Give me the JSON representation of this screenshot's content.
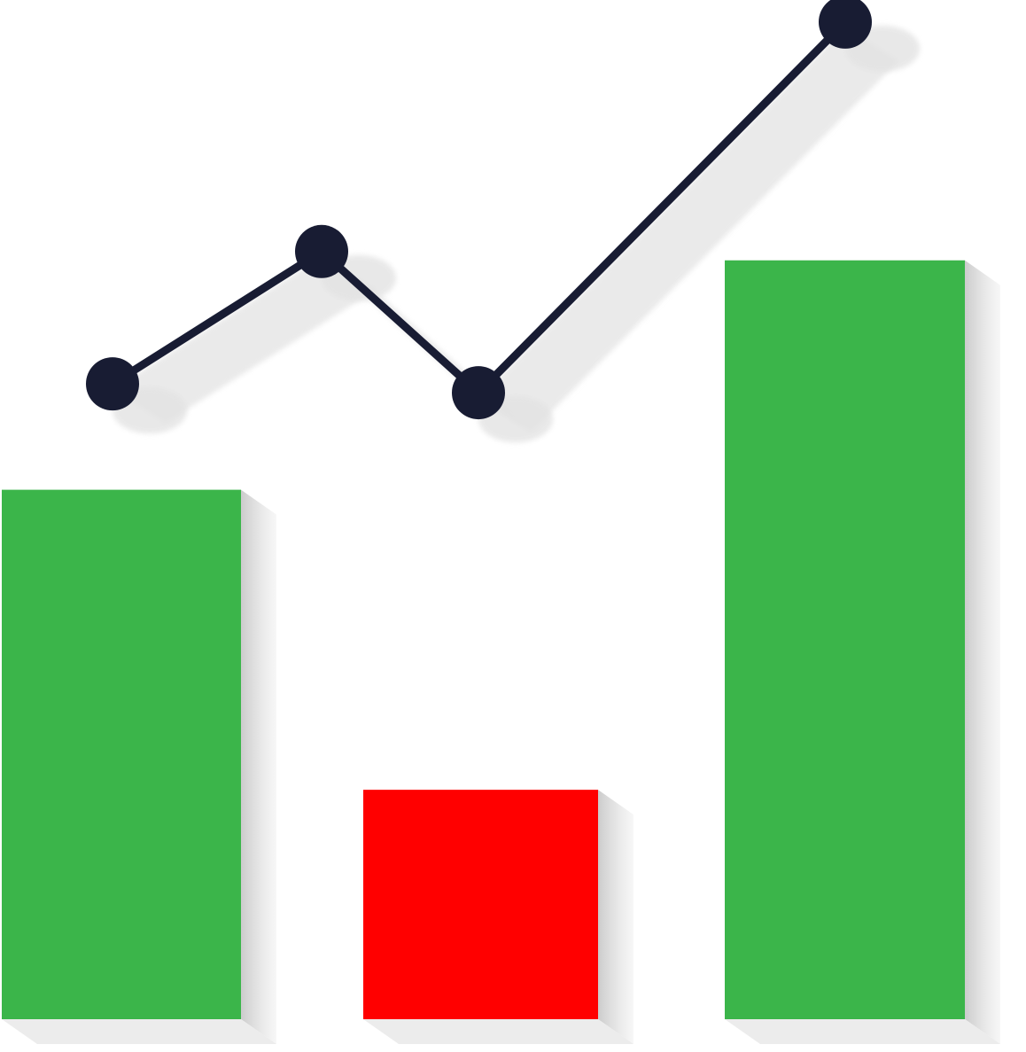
{
  "chart_data": {
    "type": "bar",
    "categories": [
      "",
      "",
      ""
    ],
    "series": [
      {
        "kind": "bar",
        "values": [
          60,
          26,
          86
        ],
        "colors": [
          "#3bb54a",
          "#ff0000",
          "#3bb54a"
        ]
      },
      {
        "kind": "line",
        "x": [
          0,
          1,
          2,
          3
        ],
        "values": [
          72,
          87,
          71,
          113
        ],
        "color": "#181c33"
      }
    ],
    "title": "",
    "xlabel": "",
    "ylabel": "",
    "ylim": [
      0,
      115
    ],
    "grid": false,
    "legend": "none",
    "shadow_color": "#d4d4d4"
  }
}
